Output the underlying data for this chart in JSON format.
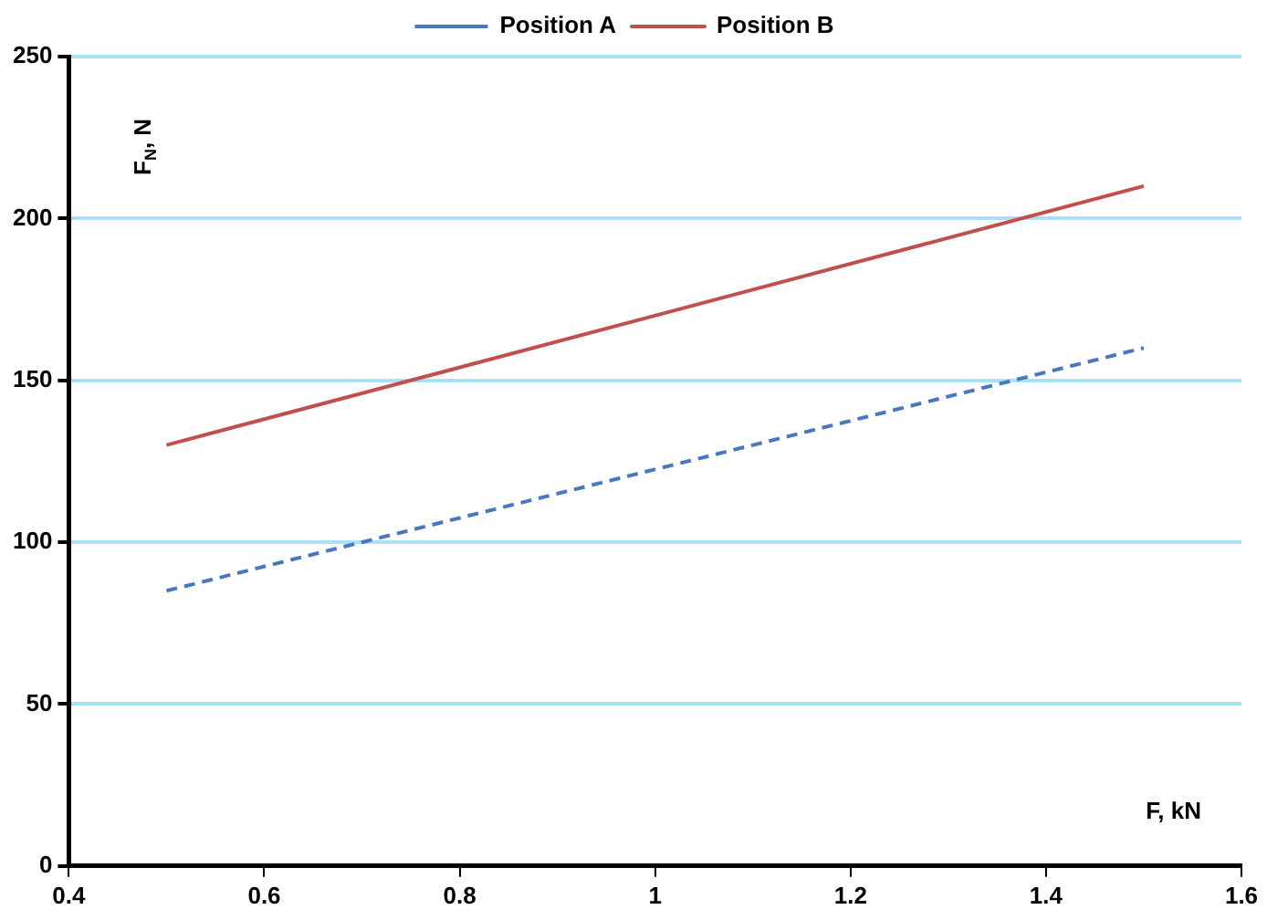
{
  "chart_data": {
    "type": "line",
    "xlabel": "F, kN",
    "ylabel": "F$_{N}$, N",
    "x": [
      0.5,
      1.5
    ],
    "series": [
      {
        "name": "Position A",
        "color": "#4a78c0",
        "values": [
          85,
          160
        ],
        "line_style": "dashed"
      },
      {
        "name": "Position B",
        "color": "#c0504d",
        "values": [
          130,
          210
        ],
        "line_style": "solid"
      }
    ],
    "xlim": [
      0.4,
      1.6
    ],
    "xticks": [
      0.4,
      0.6,
      0.8,
      1,
      1.2,
      1.4,
      1.6
    ],
    "ylim": [
      0,
      250
    ],
    "yticks": [
      0,
      50,
      100,
      150,
      200,
      250
    ],
    "grid": "y",
    "legend": "top",
    "marker": "none"
  }
}
